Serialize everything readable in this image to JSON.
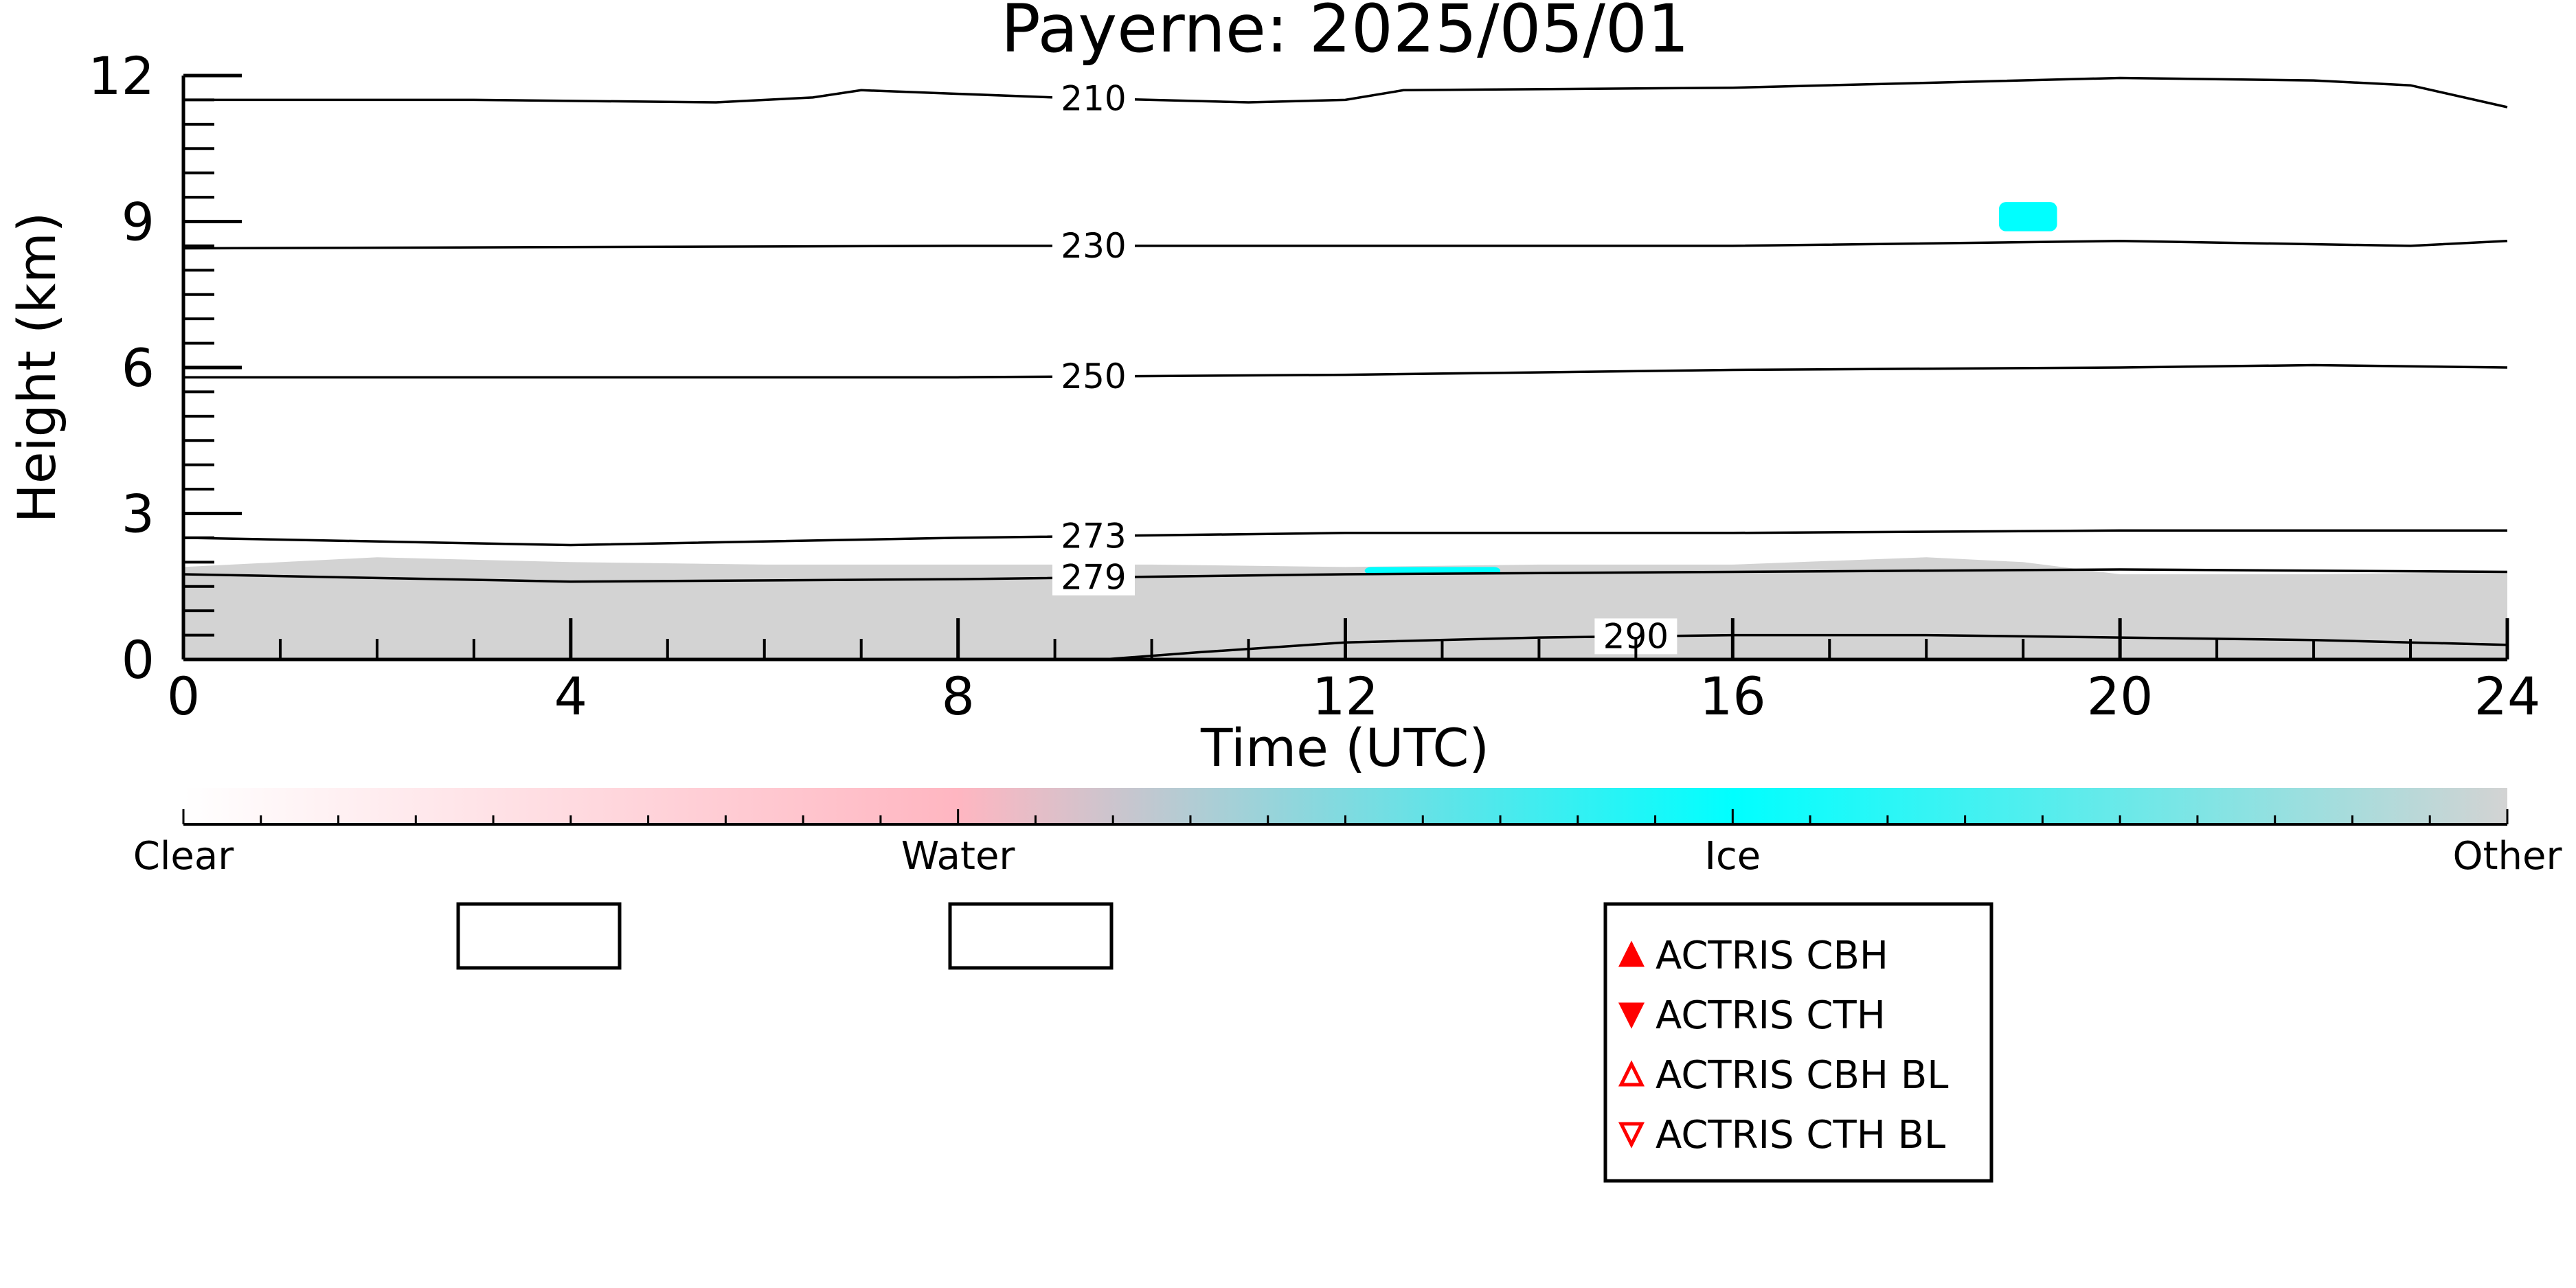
{
  "chart_data": {
    "type": "heatmap",
    "title": "Payerne: 2025/05/01",
    "xlabel": "Time (UTC)",
    "ylabel": "Height (km)",
    "xlim": [
      0,
      24
    ],
    "ylim": [
      0,
      12
    ],
    "x_ticks": [
      0,
      4,
      8,
      12,
      16,
      20,
      24
    ],
    "x_tick_labels": [
      "0",
      "4",
      "8",
      "12",
      "16",
      "20",
      "24"
    ],
    "y_ticks": [
      0,
      3,
      6,
      9,
      12
    ],
    "y_tick_labels": [
      "0",
      "3",
      "6",
      "9",
      "12"
    ],
    "grid": false,
    "colorbar": {
      "labels": [
        "Clear",
        "Water",
        "Ice",
        "Other"
      ],
      "colors": [
        "#ffffff",
        "#ffb6c1",
        "#00ffff",
        "#d3d3d3"
      ]
    },
    "isotherms": [
      {
        "label": "210",
        "points": [
          [
            0,
            11.5
          ],
          [
            3,
            11.5
          ],
          [
            5.5,
            11.45
          ],
          [
            6.5,
            11.55
          ],
          [
            7,
            11.7
          ],
          [
            9,
            11.55
          ],
          [
            11,
            11.45
          ],
          [
            12,
            11.5
          ],
          [
            12.6,
            11.7
          ],
          [
            16,
            11.75
          ],
          [
            20,
            11.95
          ],
          [
            22,
            11.9
          ],
          [
            23,
            11.8
          ],
          [
            24,
            11.35
          ]
        ]
      },
      {
        "label": "230",
        "points": [
          [
            0,
            8.45
          ],
          [
            8,
            8.5
          ],
          [
            12,
            8.5
          ],
          [
            16,
            8.5
          ],
          [
            20,
            8.6
          ],
          [
            23,
            8.5
          ],
          [
            24,
            8.6
          ]
        ]
      },
      {
        "label": "250",
        "points": [
          [
            0,
            5.8
          ],
          [
            8,
            5.8
          ],
          [
            12,
            5.85
          ],
          [
            16,
            5.95
          ],
          [
            20,
            6.0
          ],
          [
            22,
            6.05
          ],
          [
            24,
            6.0
          ]
        ]
      },
      {
        "label": "273",
        "points": [
          [
            0,
            2.5
          ],
          [
            4,
            2.35
          ],
          [
            8,
            2.5
          ],
          [
            12,
            2.6
          ],
          [
            16,
            2.6
          ],
          [
            20,
            2.65
          ],
          [
            24,
            2.65
          ]
        ]
      },
      {
        "label": "279",
        "points": [
          [
            0,
            1.75
          ],
          [
            4,
            1.6
          ],
          [
            8,
            1.65
          ],
          [
            12,
            1.75
          ],
          [
            16,
            1.8
          ],
          [
            20,
            1.85
          ],
          [
            24,
            1.8
          ]
        ]
      },
      {
        "label": "290",
        "points": [
          [
            9.5,
            0
          ],
          [
            10.5,
            0.15
          ],
          [
            12,
            0.35
          ],
          [
            14,
            0.45
          ],
          [
            16,
            0.5
          ],
          [
            18,
            0.5
          ],
          [
            20,
            0.45
          ],
          [
            22,
            0.4
          ],
          [
            24,
            0.3
          ]
        ]
      }
    ],
    "regions": [
      {
        "class": "Other",
        "color": "#d3d3d3",
        "points": [
          [
            0,
            0
          ],
          [
            0,
            1.9
          ],
          [
            2,
            2.1
          ],
          [
            4,
            2.0
          ],
          [
            6,
            1.95
          ],
          [
            8,
            1.95
          ],
          [
            10,
            1.95
          ],
          [
            12,
            1.9
          ],
          [
            14,
            1.95
          ],
          [
            16,
            1.95
          ],
          [
            18,
            2.1
          ],
          [
            19,
            2.0
          ],
          [
            20,
            1.75
          ],
          [
            22,
            1.75
          ],
          [
            24,
            1.8
          ],
          [
            24,
            0
          ]
        ]
      },
      {
        "class": "Ice",
        "color": "#00ffff",
        "x_range": [
          18.75,
          19.35
        ],
        "y_range": [
          8.8,
          9.4
        ]
      },
      {
        "class": "Ice",
        "color": "#00ffff",
        "x_range": [
          12.2,
          13.6
        ],
        "y_range": [
          1.75,
          1.9
        ]
      }
    ]
  },
  "legend": {
    "entries": [
      {
        "label": "ACTRIS CBH",
        "marker": "triangle-up-filled",
        "color": "#ff0000"
      },
      {
        "label": "ACTRIS CTH",
        "marker": "triangle-down-filled",
        "color": "#ff0000"
      },
      {
        "label": "ACTRIS CBH BL",
        "marker": "triangle-up-open",
        "color": "#ff0000"
      },
      {
        "label": "ACTRIS CTH BL",
        "marker": "triangle-down-open",
        "color": "#ff0000"
      }
    ]
  }
}
